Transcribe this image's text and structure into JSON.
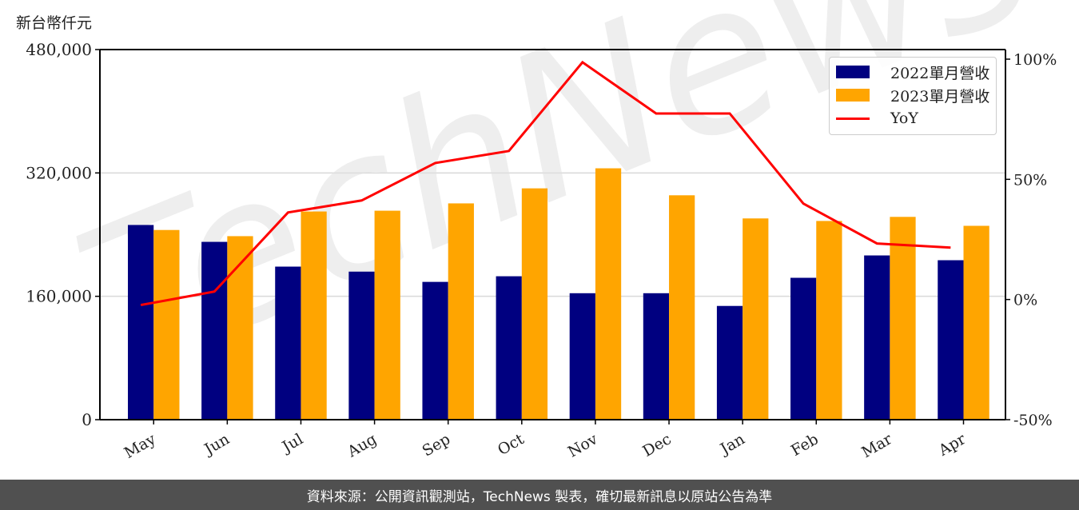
{
  "unit_label": "新台幣仟元",
  "footer": {
    "text": "資料來源：公開資訊觀測站，TechNews 製表，確切最新訊息以原站公告為準"
  },
  "watermark": {
    "text": "TechNews"
  },
  "legend": {
    "items": [
      {
        "label": "2022單月營收",
        "type": "bar",
        "color": "#000080"
      },
      {
        "label": "2023單月營收",
        "type": "bar",
        "color": "#FFA500"
      },
      {
        "label": "YoY",
        "type": "line",
        "color": "#FF0000"
      }
    ]
  },
  "chart_data": {
    "type": "bar",
    "title": "",
    "xlabel": "",
    "ylabel": "新台幣仟元",
    "y2label": "",
    "categories": [
      "May",
      "Jun",
      "Jul",
      "Aug",
      "Sep",
      "Oct",
      "Nov",
      "Dec",
      "Jan",
      "Feb",
      "Mar",
      "Apr"
    ],
    "series": [
      {
        "name": "2022單月營收",
        "type": "bar",
        "axis": "left",
        "color": "#000080",
        "values": [
          252500,
          230600,
          198500,
          192000,
          178700,
          186000,
          164000,
          164000,
          147500,
          184000,
          213000,
          206800
        ]
      },
      {
        "name": "2023單月營收",
        "type": "bar",
        "axis": "left",
        "color": "#FFA500",
        "values": [
          246000,
          238000,
          270000,
          271000,
          280500,
          300000,
          326000,
          291000,
          261000,
          257700,
          263000,
          251400
        ]
      },
      {
        "name": "YoY",
        "type": "line",
        "axis": "right",
        "color": "#FF0000",
        "values": [
          -2.3,
          3.3,
          36.2,
          41.2,
          56.8,
          61.8,
          98.7,
          77.4,
          77.4,
          39.9,
          23.3,
          21.6
        ]
      }
    ],
    "ylim": [
      0,
      480000
    ],
    "yticks": [
      0,
      160000,
      320000,
      480000
    ],
    "ytick_labels": [
      "0",
      "160,000",
      "320,000",
      "480,000"
    ],
    "y2lim": [
      -50,
      100
    ],
    "y2ticks": [
      -50,
      0,
      50,
      100
    ],
    "y2tick_labels": [
      "-50%",
      "0%",
      "50%",
      "100%"
    ],
    "grid": true,
    "legend_position": "upper right"
  }
}
